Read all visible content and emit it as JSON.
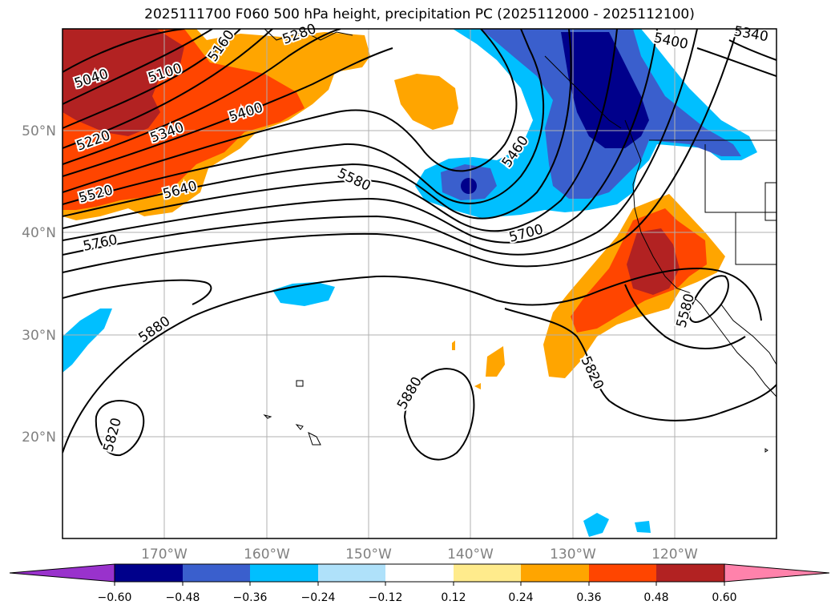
{
  "title": "2025111700 F060 500 hPa height, precipitation PC (2025112000 - 2025112100)",
  "map": {
    "lon_labels": [
      "170°W",
      "160°W",
      "150°W",
      "140°W",
      "130°W",
      "120°W"
    ],
    "lat_labels": [
      "50°N",
      "40°N",
      "30°N",
      "20°N"
    ],
    "contour_labels": [
      "5040",
      "5100",
      "5160",
      "5280",
      "5220",
      "5340",
      "5400",
      "5520",
      "5640",
      "5760",
      "5580",
      "5460",
      "5700",
      "5400",
      "5340",
      "5880",
      "5820",
      "5880",
      "5820",
      "5580"
    ],
    "colors": {
      "land_outline": "#000000",
      "grid": "#b0b0b0",
      "contour": "#000000"
    }
  },
  "colorbar": {
    "ticks": [
      "−0.60",
      "−0.48",
      "−0.36",
      "−0.24",
      "−0.12",
      "0.12",
      "0.24",
      "0.36",
      "0.48",
      "0.60"
    ],
    "colors": [
      "#9932cc",
      "#00008b",
      "#3a5fcd",
      "#00bfff",
      "#afe1fa",
      "#ffffff",
      "#ffeb8c",
      "#ffa500",
      "#ff4500",
      "#b22222",
      "#ff82ab"
    ]
  }
}
